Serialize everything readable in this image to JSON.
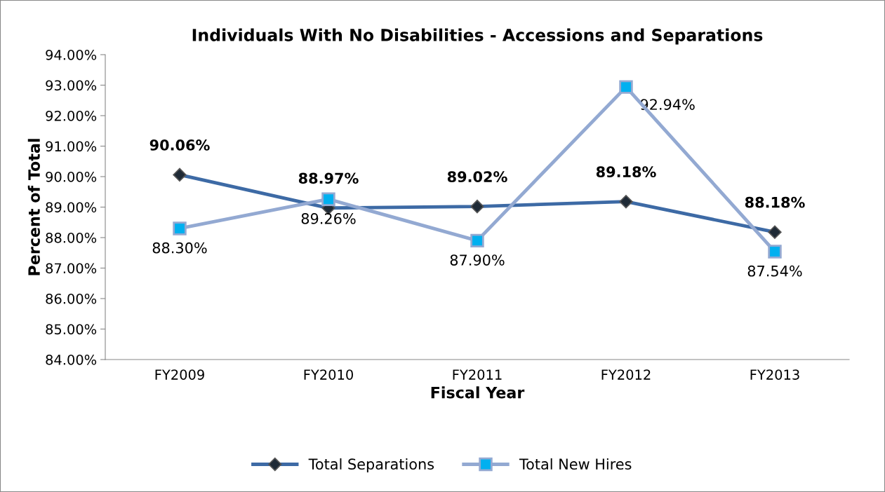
{
  "chart_data": {
    "type": "line",
    "title": "Individuals With No Disabilities - Accessions and Separations",
    "xlabel": "Fiscal Year",
    "ylabel": "Percent of Total",
    "categories": [
      "FY2009",
      "FY2010",
      "FY2011",
      "FY2012",
      "FY2013"
    ],
    "series": [
      {
        "name": "Total Separations",
        "color": "#3d6aa5",
        "marker": "diamond",
        "values": [
          90.06,
          88.97,
          89.02,
          89.18,
          88.18
        ],
        "value_labels": [
          "90.06%",
          "88.97%",
          "89.02%",
          "89.18%",
          "88.18%"
        ]
      },
      {
        "name": "Total New Hires",
        "color": "#93a9d2",
        "marker": "square",
        "values": [
          88.3,
          89.26,
          87.9,
          92.94,
          87.54
        ],
        "value_labels": [
          "88.30%",
          "89.26%",
          "87.90%",
          "92.94%",
          "87.54%"
        ]
      }
    ],
    "ylim": [
      84,
      94
    ],
    "yticks": [
      {
        "value": 84,
        "label": "84.00%"
      },
      {
        "value": 85,
        "label": "85.00%"
      },
      {
        "value": 86,
        "label": "86.00%"
      },
      {
        "value": 87,
        "label": "87.00%"
      },
      {
        "value": 88,
        "label": "88.00%"
      },
      {
        "value": 89,
        "label": "89.00%"
      },
      {
        "value": 90,
        "label": "90.00%"
      },
      {
        "value": 91,
        "label": "91.00%"
      },
      {
        "value": 92,
        "label": "92.00%"
      },
      {
        "value": 93,
        "label": "93.00%"
      },
      {
        "value": 94,
        "label": "94.00%"
      }
    ],
    "grid": false,
    "legend": "bottom",
    "line_style": "solid"
  }
}
